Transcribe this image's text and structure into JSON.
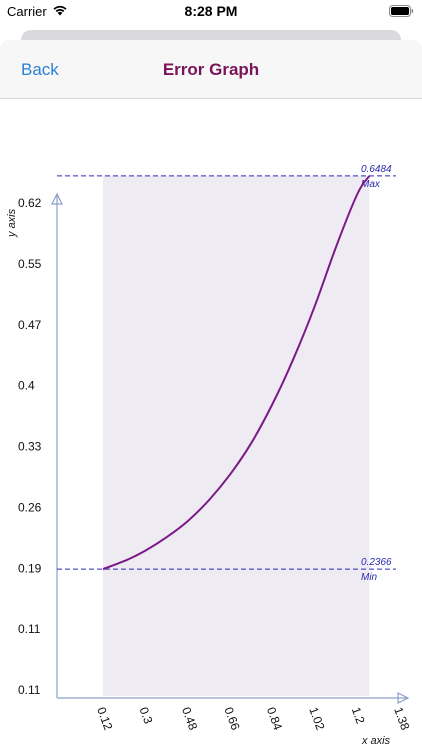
{
  "status_bar": {
    "carrier": "Carrier",
    "time": "8:28 PM"
  },
  "nav": {
    "back_label": "Back",
    "title": "Error Graph"
  },
  "colors": {
    "curve": "#7a1a86",
    "fill": "#efebf3",
    "reference": "#2a2ab0",
    "axis": "#8aa0c8",
    "title": "#7a1458",
    "back": "#2a82d4"
  },
  "chart_data": {
    "type": "area",
    "xlabel": "x axis",
    "ylabel": "y axis",
    "x_ticks": [
      "0.12",
      "0.3",
      "0.48",
      "0.66",
      "0.84",
      "1.02",
      "1.2",
      "1.38"
    ],
    "y_ticks": [
      "0.62",
      "0.55",
      "0.47",
      "0.4",
      "0.33",
      "0.26",
      "0.19",
      "0.11",
      "0.11"
    ],
    "xlim": [
      0.0,
      1.38
    ],
    "ylim": [
      0.11,
      0.62
    ],
    "series": [
      {
        "x": [
          0.12,
          0.22,
          0.3,
          0.39,
          0.48,
          0.57,
          0.66,
          0.75,
          0.84,
          0.93,
          1.02,
          1.11,
          1.2,
          1.25
        ],
        "values": [
          0.2366,
          0.246,
          0.256,
          0.27,
          0.287,
          0.309,
          0.336,
          0.369,
          0.41,
          0.458,
          0.513,
          0.575,
          0.63,
          0.6484
        ]
      }
    ],
    "reference_lines": [
      {
        "value_label": "0.6484",
        "tag": "Max",
        "y": 0.6484
      },
      {
        "value_label": "0.2366",
        "tag": "Min",
        "y": 0.2366
      }
    ],
    "grid": false
  }
}
